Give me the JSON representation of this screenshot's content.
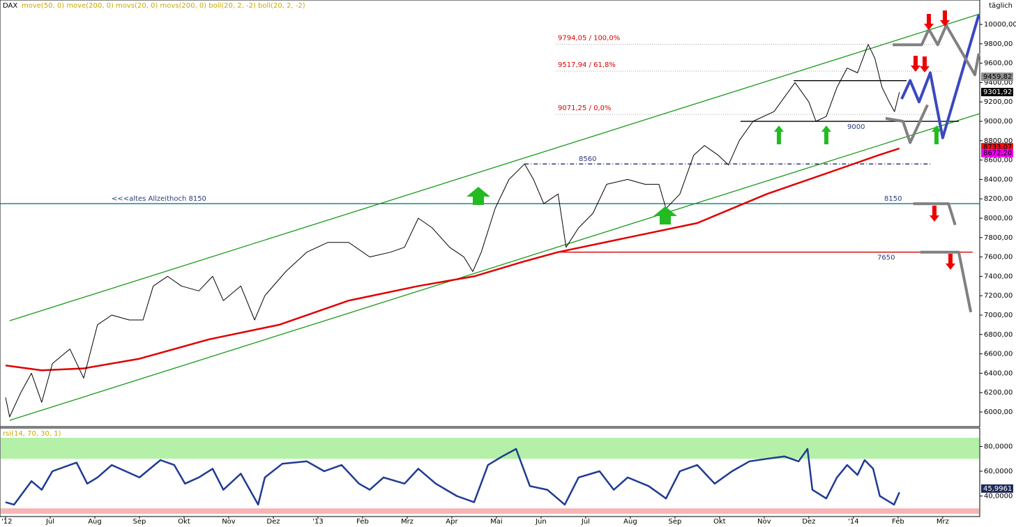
{
  "chart_data": [
    {
      "type": "line",
      "subtitle": "move(50, 0) move(200, 0) movs(20, 0) movs(200, 0) boll(20, 2, -2) boll(20, 2, -2)",
      "annotation": "täglich",
      "xlim": [
        -0.125,
        21.83
      ],
      "ylim": [
        5849,
        10252
      ],
      "yticks": [
        {
          "value": 6000,
          "label": "6000,00"
        },
        {
          "value": 6200,
          "label": "6200,00"
        },
        {
          "value": 6400,
          "label": "6400,00"
        },
        {
          "value": 6600,
          "label": "6600,00"
        },
        {
          "value": 6800,
          "label": "6800,00"
        },
        {
          "value": 7000,
          "label": "7000,00"
        },
        {
          "value": 7200,
          "label": "7200,00"
        },
        {
          "value": 7400,
          "label": "7400,00"
        },
        {
          "value": 7600,
          "label": "7600,00"
        },
        {
          "value": 7800,
          "label": "7800,00"
        },
        {
          "value": 8000,
          "label": "8000,00"
        },
        {
          "value": 8200,
          "label": "8200,00"
        },
        {
          "value": 8400,
          "label": "8400,00"
        },
        {
          "value": 8600,
          "label": "8600,00"
        },
        {
          "value": 8800,
          "label": "8800,00"
        },
        {
          "value": 9000,
          "label": "9000,00"
        },
        {
          "value": 9200,
          "label": "9200,00"
        },
        {
          "value": 9400,
          "label": "9400,00"
        },
        {
          "value": 9600,
          "label": "9600,00"
        },
        {
          "value": 9800,
          "label": "9800,00"
        },
        {
          "value": 10000,
          "label": "10000,00"
        }
      ],
      "series": [
        {
          "name": "DAX",
          "color": "#000000",
          "x": [
            0,
            0.09,
            0.34,
            0.58,
            0.81,
            1.05,
            1.44,
            1.75,
            2.06,
            2.38,
            2.77,
            3.08,
            3.31,
            3.63,
            3.94,
            4.33,
            4.64,
            4.88,
            5.27,
            5.58,
            5.81,
            6.28,
            6.75,
            7.22,
            7.69,
            8.16,
            8.63,
            8.94,
            9.25,
            9.56,
            9.95,
            10.27,
            10.47,
            10.66,
            10.97,
            11.28,
            11.63,
            11.83,
            12.06,
            12.38,
            12.56,
            12.84,
            13.16,
            13.47,
            13.94,
            14.33,
            14.64,
            14.8,
            15.11,
            15.42,
            15.66,
            15.97,
            16.2,
            16.44,
            16.75,
            17.22,
            17.69,
            18.0,
            18.16,
            18.39,
            18.63,
            18.86,
            19.09,
            19.33,
            19.48,
            19.64,
            19.8,
            19.92,
            20.03
          ],
          "values": [
            6150,
            5950,
            6200,
            6400,
            6100,
            6500,
            6650,
            6350,
            6900,
            7000,
            6950,
            6950,
            7300,
            7400,
            7300,
            7250,
            7400,
            7150,
            7300,
            6950,
            7200,
            7450,
            7650,
            7750,
            7750,
            7600,
            7650,
            7700,
            8000,
            7900,
            7700,
            7600,
            7450,
            7650,
            8100,
            8400,
            8560,
            8400,
            8150,
            8250,
            7700,
            7900,
            8050,
            8350,
            8400,
            8350,
            8350,
            8100,
            8250,
            8650,
            8750,
            8650,
            8550,
            8800,
            9000,
            9100,
            9400,
            9200,
            9000,
            9050,
            9350,
            9550,
            9500,
            9794,
            9650,
            9350,
            9200,
            9100,
            9301
          ]
        },
        {
          "color": "#e00000",
          "x": [
            0,
            0.81,
            1.75,
            3.0,
            4.56,
            6.13,
            7.69,
            9.25,
            10.5,
            11.59,
            12.38,
            13.94,
            15.5,
            17.06,
            18.63,
            19.56,
            20.03
          ],
          "values": [
            6480,
            6430,
            6450,
            6550,
            6750,
            6900,
            7150,
            7300,
            7400,
            7550,
            7650,
            7800,
            7950,
            8250,
            8500,
            8650,
            8720
          ]
        }
      ],
      "channels": [
        {
          "color": "#1a9a1a",
          "x": [
            0.09,
            21.83
          ],
          "values": [
            6942,
            10108
          ]
        },
        {
          "color": "#1a9a1a",
          "x": [
            0.09,
            21.83
          ],
          "values": [
            5914,
            9079
          ]
        }
      ],
      "levels": [
        {
          "value": 8150,
          "color": "#008080",
          "style": "solid",
          "label_color": "#2b3a7a",
          "labels": [
            "<<<altes Allzeithoch 8150",
            "8150"
          ]
        },
        {
          "value": 7650,
          "color": "#d00000",
          "style": "solid",
          "label_color": "#2b3a7a",
          "x": [
            12.38,
            21.67
          ],
          "labels": [
            "7650"
          ]
        },
        {
          "value": 8560,
          "color": "#1a2a6a",
          "style": "dashdot",
          "label_color": "#2b3a7a",
          "x": [
            11.63,
            20.73
          ],
          "labels": [
            "8560"
          ]
        },
        {
          "value": 9000,
          "color": "#000000",
          "style": "solid",
          "label_color": "#2b3a7a",
          "x": [
            16.47,
            21.36
          ],
          "labels": [
            "9000"
          ]
        },
        {
          "value": 9794.05,
          "color": "#888888",
          "style": "dotted",
          "label_color": "#dd0000",
          "x": [
            12.33,
            20.97
          ],
          "labels": [
            "9794,05 / 100,0%"
          ]
        },
        {
          "value": 9517.94,
          "color": "#888888",
          "style": "dotted",
          "label_color": "#dd0000",
          "x": [
            12.33,
            20.97
          ],
          "labels": [
            "9517,94 / 61,8%"
          ]
        },
        {
          "value": 9071.25,
          "color": "#888888",
          "style": "dotted",
          "label_color": "#dd0000",
          "x": [
            12.33,
            20.97
          ],
          "labels": [
            "9071,25 / 0,0%"
          ]
        },
        {
          "value": 9420,
          "color": "#000000",
          "style": "solid",
          "x": [
            17.66,
            20.19
          ]
        }
      ],
      "projections": [
        {
          "color": "#3a48c0",
          "x": [
            20.08,
            20.27,
            20.47,
            20.72,
            21.0,
            21.81
          ],
          "values": [
            9230,
            9420,
            9200,
            9500,
            8830,
            10100
          ]
        },
        {
          "color": "#808080",
          "x": [
            19.88,
            20.53,
            20.69,
            20.89,
            21.08,
            21.72,
            21.81
          ],
          "values": [
            9790,
            9790,
            9950,
            9790,
            9990,
            9480,
            9700
          ]
        },
        {
          "color": "#808080",
          "x": [
            19.72,
            20.11,
            20.27,
            20.66
          ],
          "values": [
            9030,
            9000,
            8780,
            9170
          ]
        },
        {
          "color": "#808080",
          "x": [
            20.34,
            21.13,
            21.28
          ],
          "values": [
            8150,
            8150,
            7930
          ]
        },
        {
          "color": "#808080",
          "x": [
            20.5,
            21.36,
            21.63
          ],
          "values": [
            7650,
            7650,
            7030
          ]
        }
      ],
      "price_boxes": [
        {
          "value": 9459.82,
          "label": "9459,82",
          "color": "#909090",
          "text_color": "#000000"
        },
        {
          "value": 9301.92,
          "label": "9301,92",
          "color": "#000000",
          "text_color": "#ffffff"
        },
        {
          "value": 8733.07,
          "label": "8733,07",
          "color": "#ee1111",
          "text_color": "#000000"
        },
        {
          "value": 8672.2,
          "label": "8672,20",
          "color": "#ee00ee",
          "text_color": "#000000"
        }
      ]
    },
    {
      "type": "line",
      "subtitle": "rsi(14, 70, 30, 1)",
      "xlim": [
        -0.125,
        21.83
      ],
      "xticks": [
        {
          "value": 0,
          "label": "'12"
        },
        {
          "value": 1,
          "label": "Jul"
        },
        {
          "value": 2,
          "label": "Aug"
        },
        {
          "value": 3,
          "label": "Sep"
        },
        {
          "value": 4,
          "label": "Okt"
        },
        {
          "value": 5,
          "label": "Nov"
        },
        {
          "value": 6,
          "label": "Dez"
        },
        {
          "value": 7,
          "label": "'13"
        },
        {
          "value": 8,
          "label": "Feb"
        },
        {
          "value": 9,
          "label": "Mrz"
        },
        {
          "value": 10,
          "label": "Apr"
        },
        {
          "value": 11,
          "label": "Mai"
        },
        {
          "value": 12,
          "label": "Jun"
        },
        {
          "value": 13,
          "label": "Jul"
        },
        {
          "value": 14,
          "label": "Aug"
        },
        {
          "value": 15,
          "label": "Sep"
        },
        {
          "value": 16,
          "label": "Okt"
        },
        {
          "value": 17,
          "label": "Nov"
        },
        {
          "value": 18,
          "label": "Dez"
        },
        {
          "value": 19,
          "label": "'14"
        },
        {
          "value": 20,
          "label": "Feb"
        },
        {
          "value": 21,
          "label": "Mrz"
        }
      ],
      "ylim": [
        23.4,
        94.9
      ],
      "yticks": [
        {
          "value": 40,
          "label": "40,0000"
        },
        {
          "value": 60,
          "label": "60,0000"
        },
        {
          "value": 80,
          "label": "80,0000"
        }
      ],
      "overbought": 70,
      "oversold": 30,
      "series": [
        {
          "color": "#1f3a93",
          "x": [
            0,
            0.19,
            0.58,
            0.81,
            1.05,
            1.59,
            1.83,
            2.06,
            2.38,
            2.69,
            3.0,
            3.47,
            3.78,
            4.02,
            4.33,
            4.64,
            4.88,
            5.27,
            5.66,
            5.81,
            6.2,
            6.75,
            7.14,
            7.53,
            7.92,
            8.16,
            8.47,
            8.94,
            9.25,
            9.64,
            10.11,
            10.5,
            10.81,
            11.13,
            11.44,
            11.75,
            12.14,
            12.53,
            12.84,
            13.31,
            13.63,
            13.94,
            14.41,
            14.8,
            15.11,
            15.5,
            15.89,
            16.28,
            16.67,
            17.06,
            17.45,
            17.77,
            17.97,
            18.08,
            18.39,
            18.63,
            18.86,
            19.09,
            19.25,
            19.44,
            19.59,
            19.91,
            20.03
          ],
          "values": [
            35,
            33,
            52,
            45,
            60,
            67,
            50,
            55,
            65,
            60,
            55,
            69,
            65,
            50,
            55,
            62,
            45,
            58,
            33,
            55,
            66,
            68,
            60,
            65,
            50,
            45,
            55,
            50,
            62,
            50,
            40,
            35,
            65,
            72,
            78,
            48,
            45,
            33,
            55,
            60,
            45,
            55,
            48,
            38,
            60,
            65,
            50,
            60,
            68,
            70,
            72,
            68,
            78,
            45,
            38,
            55,
            65,
            57,
            69,
            62,
            40,
            33,
            43
          ]
        }
      ],
      "value_box": {
        "value": 45.9961,
        "label": "45,9961"
      }
    }
  ]
}
